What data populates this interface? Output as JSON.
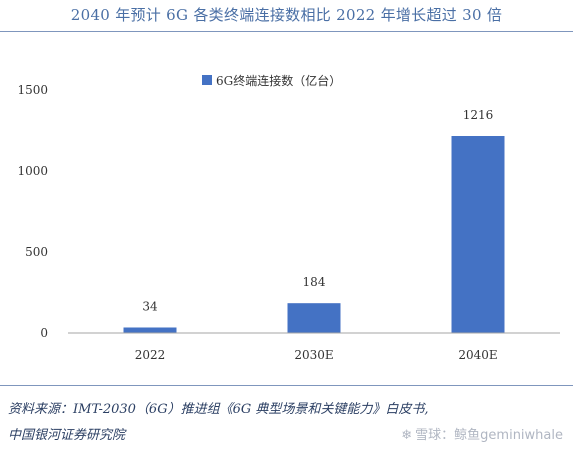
{
  "title": "2040 年预计 6G 各类终端连接数相比 2022 年增长超过 30 倍",
  "chart_data": {
    "type": "bar",
    "categories": [
      "2022",
      "2030E",
      "2040E"
    ],
    "series": [
      {
        "name": "6G终端连接数（亿台）",
        "values": [
          34,
          184,
          1216
        ]
      }
    ],
    "data_labels": [
      "34",
      "184",
      "1216"
    ],
    "ylim": [
      0,
      1500
    ],
    "yticks": [
      0,
      500,
      1000,
      1500
    ],
    "ytick_labels": [
      "0",
      "500",
      "1000",
      "1500"
    ],
    "legend_position": "top-center",
    "grid": false,
    "bar_color": "#4472c4"
  },
  "source": {
    "line1": "资料来源：IMT-2030（6G）推进组《6G 典型场景和关键能力》白皮书,",
    "line2": "中国银河证券研究院"
  },
  "watermark": {
    "text": "雪球：鲸鱼geminiwhale",
    "icon": "snowflake-icon"
  }
}
